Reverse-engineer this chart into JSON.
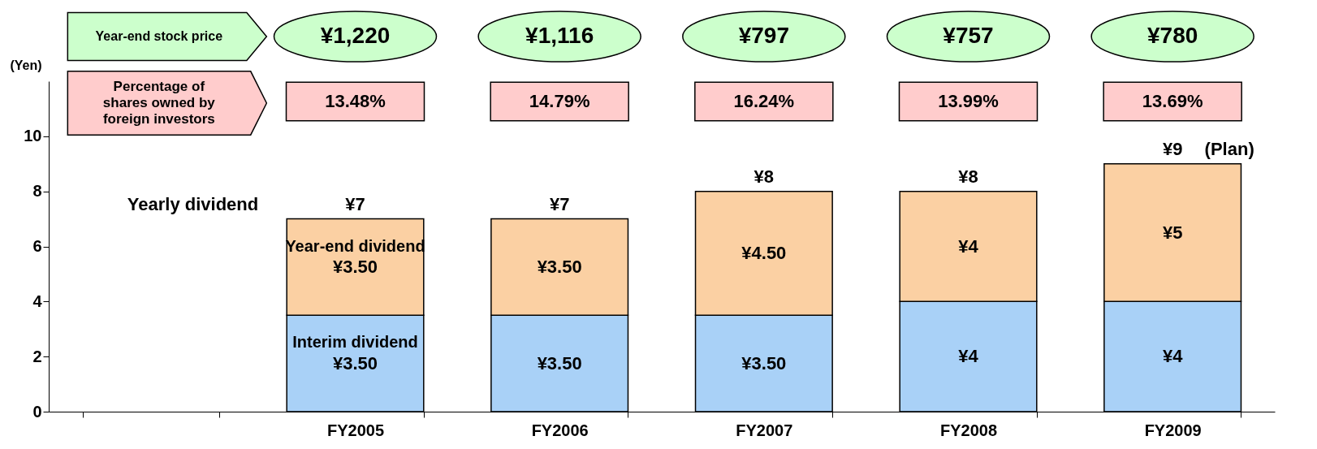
{
  "chart_data": {
    "type": "bar",
    "stacked": true,
    "ylabel": "(Yen)",
    "categories": [
      null,
      "FY2005",
      "FY2006",
      "FY2007",
      "FY2008",
      "FY2009"
    ],
    "series": [
      {
        "name": "Interim dividend",
        "color": "#a9d1f7",
        "values": [
          null,
          3.5,
          3.5,
          3.5,
          4,
          4
        ],
        "value_labels": [
          null,
          "¥3.50",
          "¥3.50",
          "¥3.50",
          "¥4",
          "¥4"
        ]
      },
      {
        "name": "Year-end dividend",
        "color": "#fbd0a3",
        "values": [
          null,
          3.5,
          3.5,
          4.5,
          4,
          5
        ],
        "value_labels": [
          null,
          "¥3.50",
          "¥3.50",
          "¥4.50",
          "¥4",
          "¥5"
        ]
      }
    ],
    "totals": [
      null,
      "¥7",
      "¥7",
      "¥8",
      "¥8",
      "¥9"
    ],
    "ylim": [
      0,
      12
    ],
    "yticks": [
      0,
      2,
      4,
      6,
      8,
      10
    ],
    "grid": false,
    "legend": false,
    "annotations": [
      "Year-end stock price",
      "¥1,220",
      "¥1,116",
      "¥797",
      "¥757",
      "¥780",
      "Percentage of\nshares owned by\nforeign investors",
      "13.48%",
      "14.79%",
      "16.24%",
      "13.99%",
      "13.69%",
      "Yearly dividend",
      {
        "text": "(Plan)",
        "x": "FY2009",
        "y": 9
      }
    ]
  }
}
